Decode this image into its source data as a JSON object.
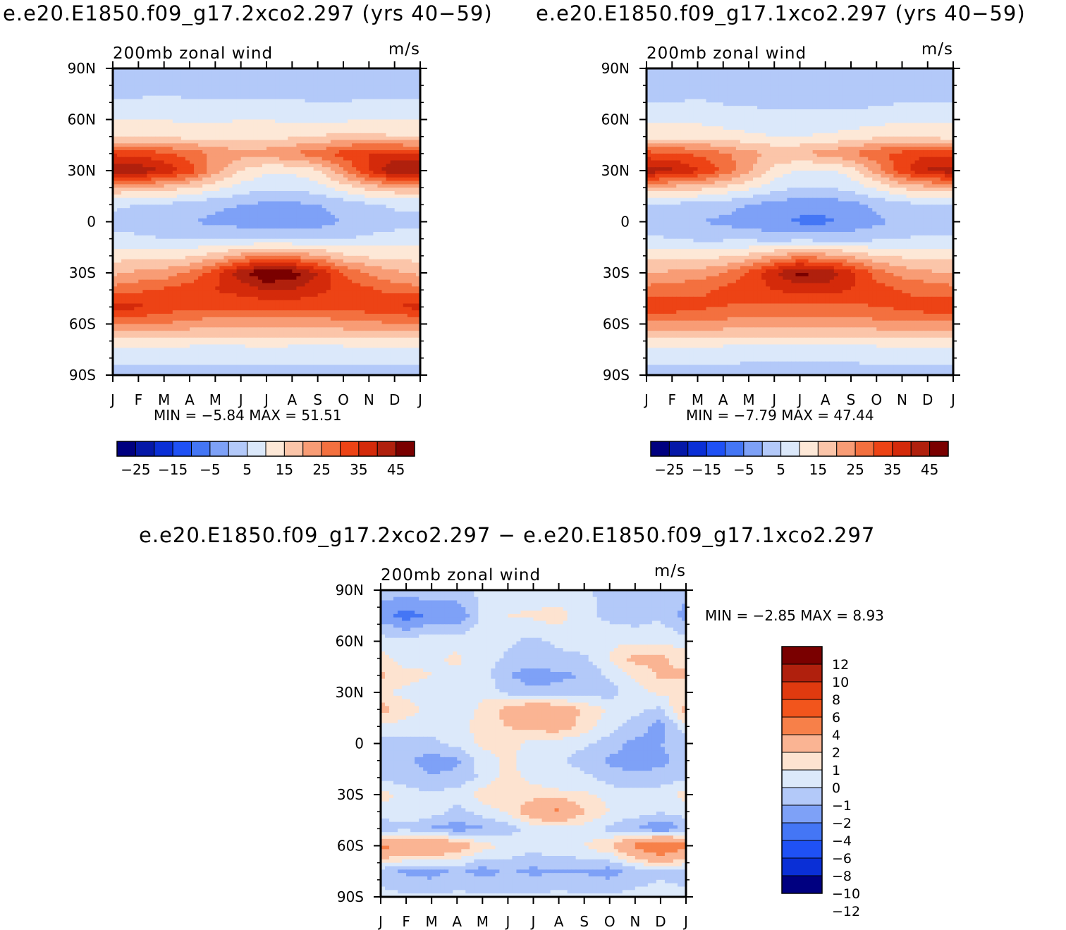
{
  "titles": {
    "left": "e.e20.E1850.f09_g17.2xco2.297 (yrs 40−59)",
    "right": "e.e20.E1850.f09_g17.1xco2.297 (yrs 40−59)",
    "diff": "e.e20.E1850.f09_g17.2xco2.297 − e.e20.E1850.f09_g17.1xco2.297"
  },
  "colors": {
    "mean_palette": [
      "#000080",
      "#0518a8",
      "#0a2fd6",
      "#1f51f5",
      "#4476f5",
      "#7ea1f7",
      "#b3c9f9",
      "#dbe8fa",
      "#fde8d7",
      "#fbc5a9",
      "#f89c75",
      "#f3703f",
      "#ed4315",
      "#d42a0a",
      "#b0200d",
      "#7a0000"
    ],
    "diff_palette": [
      "#7a0000",
      "#b0200d",
      "#e03a0f",
      "#f2551c",
      "#f78049",
      "#fab493",
      "#fde3d0",
      "#dce9fa",
      "#b3c9f9",
      "#7ea1f7",
      "#4476f5",
      "#1f51f5",
      "#0a2fd6",
      "#000080"
    ]
  },
  "chart_data": [
    {
      "id": "left",
      "type": "heatmap",
      "title": "e.e20.E1850.f09_g17.2xco2.297 (yrs 40−59)",
      "left_label": "200mb zonal wind",
      "right_label": "m/s",
      "x_tick_labels": [
        "J",
        "F",
        "M",
        "A",
        "M",
        "J",
        "J",
        "A",
        "S",
        "O",
        "N",
        "D",
        "J"
      ],
      "y_tick_labels": [
        "90N",
        "60N",
        "30N",
        "0",
        "30S",
        "60S",
        "90S"
      ],
      "ylim": [
        -90,
        90
      ],
      "min": -5.84,
      "max": 51.51,
      "min_label": "MIN =",
      "min_value": "−5.84",
      "max_label": "MAX =",
      "max_value": "51.51",
      "colorbar_levels": [
        -30,
        -25,
        -20,
        -15,
        -10,
        -5,
        0,
        5,
        10,
        15,
        20,
        25,
        30,
        35,
        40,
        45,
        50
      ],
      "colorbar_labels": [
        "−25",
        "−15",
        "−5",
        "5",
        "15",
        "25",
        "35",
        "45"
      ],
      "field": {
        "months": [
          0,
          1,
          2,
          3,
          4,
          5,
          6,
          7,
          8,
          9,
          10,
          11,
          12
        ],
        "lats": [
          -90,
          -75,
          -60,
          -50,
          -40,
          -30,
          -20,
          -10,
          0,
          10,
          20,
          30,
          40,
          50,
          60,
          75,
          90
        ],
        "values": [
          [
            3,
            3,
            3,
            3,
            3,
            3,
            3,
            3,
            3,
            3,
            3,
            3,
            3
          ],
          [
            8,
            8,
            8,
            8,
            8,
            8,
            9,
            8,
            8,
            8,
            8,
            8,
            8
          ],
          [
            24,
            25,
            25,
            23,
            22,
            22,
            22,
            22,
            22,
            23,
            24,
            24,
            24
          ],
          [
            37,
            36,
            33,
            31,
            31,
            31,
            31,
            31,
            31,
            31,
            33,
            35,
            37
          ],
          [
            27,
            29,
            31,
            33,
            35,
            37,
            40,
            40,
            37,
            33,
            31,
            28,
            27
          ],
          [
            19,
            21,
            22,
            26,
            33,
            43,
            51,
            48,
            40,
            30,
            24,
            21,
            19
          ],
          [
            13,
            13,
            13,
            14,
            17,
            22,
            26,
            24,
            21,
            16,
            14,
            13,
            13
          ],
          [
            7,
            6,
            5,
            5,
            5,
            4,
            4,
            4,
            4,
            5,
            6,
            7,
            7
          ],
          [
            3,
            2,
            1,
            0,
            -1,
            -2,
            -4,
            -4,
            -2,
            0,
            2,
            3,
            3
          ],
          [
            6,
            5,
            4,
            3,
            1,
            0,
            -1,
            -1,
            0,
            2,
            4,
            6,
            6
          ],
          [
            19,
            19,
            18,
            15,
            12,
            8,
            6,
            6,
            8,
            12,
            17,
            19,
            19
          ],
          [
            46,
            44,
            39,
            33,
            22,
            15,
            11,
            11,
            14,
            24,
            36,
            45,
            46
          ],
          [
            34,
            33,
            31,
            28,
            24,
            22,
            23,
            25,
            28,
            32,
            35,
            36,
            34
          ],
          [
            14,
            14,
            14,
            13,
            13,
            13,
            13,
            14,
            15,
            17,
            17,
            15,
            14
          ],
          [
            10,
            10,
            10,
            9,
            9,
            10,
            10,
            9,
            9,
            9,
            10,
            10,
            10
          ],
          [
            4,
            4,
            5,
            4,
            4,
            4,
            4,
            4,
            3,
            3,
            4,
            4,
            4
          ],
          [
            2,
            2,
            2,
            2,
            2,
            2,
            2,
            2,
            2,
            2,
            2,
            2,
            2
          ]
        ]
      }
    },
    {
      "id": "right",
      "type": "heatmap",
      "title": "e.e20.E1850.f09_g17.1xco2.297 (yrs 40−59)",
      "left_label": "200mb zonal wind",
      "right_label": "m/s",
      "x_tick_labels": [
        "J",
        "F",
        "M",
        "A",
        "M",
        "J",
        "J",
        "A",
        "S",
        "O",
        "N",
        "D",
        "J"
      ],
      "y_tick_labels": [
        "90N",
        "60N",
        "30N",
        "0",
        "30S",
        "60S",
        "90S"
      ],
      "ylim": [
        -90,
        90
      ],
      "min": -7.79,
      "max": 47.44,
      "min_label": "MIN =",
      "min_value": "−7.79",
      "max_label": "MAX =",
      "max_value": "47.44",
      "colorbar_levels": [
        -30,
        -25,
        -20,
        -15,
        -10,
        -5,
        0,
        5,
        10,
        15,
        20,
        25,
        30,
        35,
        40,
        45,
        50
      ],
      "colorbar_labels": [
        "−25",
        "−15",
        "−5",
        "5",
        "15",
        "25",
        "35",
        "45"
      ],
      "field": {
        "months": [
          0,
          1,
          2,
          3,
          4,
          5,
          6,
          7,
          8,
          9,
          10,
          11,
          12
        ],
        "lats": [
          -90,
          -75,
          -60,
          -50,
          -40,
          -30,
          -20,
          -10,
          0,
          10,
          20,
          30,
          40,
          50,
          60,
          75,
          90
        ],
        "values": [
          [
            3,
            3,
            3,
            3,
            3,
            3,
            3,
            3,
            3,
            3,
            3,
            3,
            3
          ],
          [
            8,
            8,
            8,
            8,
            7,
            7,
            7,
            7,
            7,
            8,
            8,
            8,
            8
          ],
          [
            24,
            24,
            24,
            23,
            22,
            22,
            22,
            22,
            22,
            23,
            24,
            24,
            24
          ],
          [
            34,
            33,
            31,
            30,
            29,
            29,
            29,
            29,
            29,
            30,
            31,
            33,
            34
          ],
          [
            27,
            28,
            29,
            31,
            33,
            35,
            37,
            37,
            35,
            32,
            30,
            28,
            27
          ],
          [
            20,
            21,
            22,
            25,
            31,
            39,
            47,
            44,
            37,
            28,
            23,
            21,
            20
          ],
          [
            13,
            13,
            13,
            14,
            16,
            20,
            24,
            22,
            19,
            15,
            14,
            13,
            13
          ],
          [
            6,
            5,
            4,
            4,
            4,
            3,
            3,
            3,
            3,
            4,
            5,
            6,
            6
          ],
          [
            2,
            1,
            0,
            -1,
            -3,
            -4,
            -6,
            -6,
            -4,
            -1,
            1,
            2,
            2
          ],
          [
            5,
            4,
            3,
            2,
            0,
            -2,
            -3,
            -3,
            -2,
            1,
            3,
            5,
            5
          ],
          [
            18,
            18,
            17,
            14,
            11,
            7,
            5,
            5,
            7,
            11,
            16,
            18,
            18
          ],
          [
            43,
            41,
            36,
            29,
            21,
            13,
            9,
            9,
            12,
            22,
            33,
            41,
            43
          ],
          [
            32,
            31,
            29,
            26,
            22,
            19,
            20,
            22,
            25,
            29,
            32,
            34,
            32
          ],
          [
            13,
            13,
            13,
            12,
            11,
            10,
            10,
            11,
            12,
            14,
            14,
            13,
            13
          ],
          [
            9,
            9,
            9,
            8,
            7,
            6,
            6,
            6,
            7,
            8,
            9,
            9,
            9
          ],
          [
            3,
            3,
            4,
            3,
            3,
            3,
            3,
            3,
            2,
            2,
            3,
            3,
            3
          ],
          [
            1,
            1,
            1,
            1,
            1,
            1,
            1,
            1,
            1,
            1,
            1,
            1,
            1
          ]
        ]
      }
    },
    {
      "id": "diff",
      "type": "heatmap",
      "title": "e.e20.E1850.f09_g17.2xco2.297 − e.e20.E1850.f09_g17.1xco2.297",
      "left_label": "200mb zonal wind",
      "right_label": "m/s",
      "x_tick_labels": [
        "J",
        "F",
        "M",
        "A",
        "M",
        "J",
        "J",
        "A",
        "S",
        "O",
        "N",
        "D",
        "J"
      ],
      "y_tick_labels": [
        "90N",
        "60N",
        "30N",
        "0",
        "30S",
        "60S",
        "90S"
      ],
      "ylim": [
        -90,
        90
      ],
      "min": -2.85,
      "max": 8.93,
      "min_label": "MIN =",
      "min_value": "−2.85",
      "max_label": "MAX =",
      "max_value": "8.93",
      "colorbar_levels": [
        14,
        12,
        10,
        8,
        6,
        4,
        2,
        1,
        0,
        -1,
        -2,
        -4,
        -6,
        -8,
        -10,
        -12,
        -14
      ],
      "colorbar_labels": [
        "12",
        "10",
        "8",
        "6",
        "4",
        "2",
        "1",
        "0",
        "−1",
        "−2",
        "−4",
        "−6",
        "−8",
        "−10",
        "−12"
      ],
      "field": {
        "months": [
          0,
          1,
          2,
          3,
          4,
          5,
          6,
          7,
          8,
          9,
          10,
          11,
          12
        ],
        "lats": [
          -90,
          -75,
          -60,
          -50,
          -40,
          -30,
          -20,
          -10,
          0,
          10,
          20,
          30,
          40,
          50,
          60,
          75,
          90
        ],
        "values": [
          [
            0.3,
            0.2,
            0.2,
            0.2,
            0.3,
            0.2,
            0.2,
            0.3,
            0.2,
            0.2,
            0.3,
            0.4,
            0.3
          ],
          [
            -0.5,
            -1.2,
            -1.5,
            -0.7,
            -1.5,
            -0.8,
            -1.3,
            -1.0,
            -1.1,
            -1.5,
            -0.6,
            -0.2,
            -0.5
          ],
          [
            4.5,
            4.0,
            4.2,
            3.0,
            1.5,
            0.8,
            0.5,
            0.8,
            1.0,
            2.0,
            4.5,
            6.5,
            4.5
          ],
          [
            -0.8,
            -0.3,
            -1.2,
            -1.5,
            -1.2,
            -0.5,
            0.3,
            0.5,
            0.5,
            -0.3,
            -1.0,
            -2.2,
            -0.8
          ],
          [
            0.5,
            0.8,
            0.6,
            -0.4,
            0.5,
            1.2,
            3.0,
            4.5,
            2.0,
            1.0,
            0.5,
            0.2,
            0.5
          ],
          [
            1.5,
            0.5,
            0.2,
            0.5,
            1.5,
            1.8,
            1.6,
            1.2,
            1.2,
            0.6,
            0.4,
            0.4,
            1.5
          ],
          [
            -0.3,
            -0.6,
            -0.9,
            -0.7,
            0.2,
            1.5,
            0.6,
            0.5,
            0.3,
            -0.5,
            -0.8,
            -0.5,
            -0.3
          ],
          [
            -0.5,
            -0.8,
            -1.5,
            -1.2,
            0.5,
            1.2,
            0.4,
            0.2,
            -0.5,
            -1.2,
            -1.5,
            -1.3,
            -0.5
          ],
          [
            -0.6,
            -0.4,
            -0.2,
            0.3,
            1.2,
            1.5,
            0.6,
            0.4,
            0.2,
            -0.5,
            -1.3,
            -1.0,
            -0.6
          ],
          [
            0.8,
            0.5,
            0.2,
            0.6,
            1.5,
            2.0,
            2.5,
            2.8,
            1.5,
            0.4,
            -0.5,
            -1.5,
            0.8
          ],
          [
            2.5,
            1.5,
            0.6,
            0.4,
            1.2,
            2.5,
            3.5,
            3.0,
            1.8,
            0.8,
            0.3,
            -0.2,
            2.5
          ],
          [
            1.2,
            0.6,
            0.4,
            0.5,
            0.8,
            -0.3,
            -0.8,
            -0.6,
            -0.4,
            -0.5,
            0.6,
            1.2,
            1.2
          ],
          [
            2.2,
            1.5,
            1.0,
            0.8,
            0.5,
            -1.0,
            -1.5,
            -1.2,
            -1.0,
            0.3,
            1.2,
            2.2,
            2.2
          ],
          [
            1.5,
            0.3,
            0.8,
            1.2,
            0.5,
            -0.2,
            -0.5,
            -0.3,
            -0.2,
            1.0,
            2.5,
            2.2,
            1.5
          ],
          [
            0.5,
            0.2,
            0.8,
            0.6,
            0.8,
            0.2,
            -0.3,
            0.2,
            0.6,
            0.8,
            0.7,
            0.8,
            0.5
          ],
          [
            -1.5,
            -2.5,
            -1.8,
            -2.0,
            0.2,
            1.0,
            1.2,
            1.5,
            0.3,
            -0.3,
            -0.5,
            -0.2,
            -1.5
          ],
          [
            -0.5,
            -0.5,
            -0.3,
            -0.2,
            0.2,
            0.3,
            0.2,
            0.2,
            0.1,
            -0.2,
            -0.5,
            -0.3,
            -0.5
          ]
        ]
      }
    }
  ]
}
